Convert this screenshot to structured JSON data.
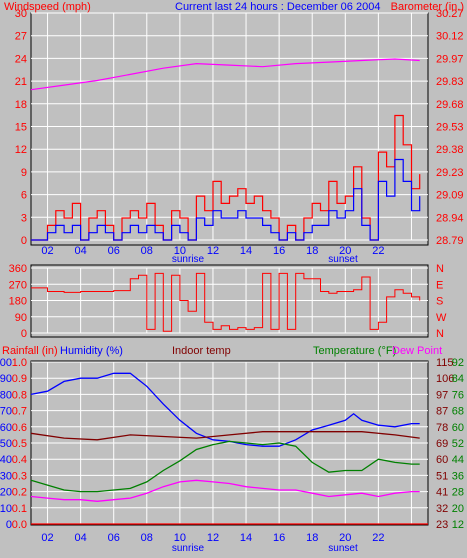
{
  "header": {
    "left_label": "Windspeed (mph)",
    "center_label": "Current last 24 hours : December 06 2004",
    "right_label": "Barometer (in.)"
  },
  "colors": {
    "background": "#c0c0c0",
    "plot_bg": "#c0c0c0",
    "wind": "#ff0000",
    "gust": "#0000ff",
    "barometer": "#ff00ff",
    "direction": "#ff0000",
    "humidity": "#0000ff",
    "indoor": "#800000",
    "temperature": "#008000",
    "dewpoint": "#ff00ff",
    "rain": "#ff0000",
    "grid": "#ffffff",
    "axis_left": "#ff0000",
    "axis_right": "#ff0000"
  },
  "x_ticks": [
    "02",
    "04",
    "06",
    "08",
    "10",
    "12",
    "14",
    "16",
    "18",
    "20",
    "22"
  ],
  "sun_labels": {
    "sunrise": "sunrise",
    "sunset": "sunset"
  },
  "chart_data": [
    {
      "type": "line",
      "title": "",
      "left_axis": {
        "label": "Windspeed (mph)",
        "ticks": [
          0,
          3,
          6,
          9,
          12,
          15,
          18,
          21,
          24,
          27,
          30
        ],
        "range": [
          0,
          31
        ]
      },
      "right_axis": {
        "label": "Barometer (in.)",
        "ticks": [
          "28.79",
          "28.94",
          "29.09",
          "29.23",
          "29.38",
          "29.53",
          "29.68",
          "29.83",
          "29.97",
          "30.12",
          "30.27"
        ],
        "range": [
          28.79,
          30.27
        ]
      },
      "x_range": [
        0,
        24
      ],
      "series": [
        {
          "key": "wind",
          "x": [
            0,
            1,
            1.5,
            2,
            2.5,
            3,
            3.5,
            4,
            4.5,
            5,
            5.5,
            6,
            6.5,
            7,
            7.5,
            8,
            8.5,
            9,
            9.5,
            10,
            10.5,
            11,
            11.5,
            12,
            12.5,
            13,
            13.5,
            14,
            14.5,
            15,
            15.5,
            16,
            16.5,
            17,
            17.5,
            18,
            18.5,
            19,
            19.5,
            20,
            20.5,
            21,
            21.5,
            22,
            22.5,
            23,
            23.5
          ],
          "y": [
            0,
            2,
            4,
            3,
            5,
            0,
            3,
            4,
            2,
            0,
            3,
            4,
            3,
            5,
            2,
            0,
            4,
            3,
            0,
            6,
            4,
            8,
            5,
            6,
            7,
            5,
            6,
            4,
            3,
            0,
            2,
            0,
            3,
            5,
            4,
            8,
            5,
            6,
            10,
            3,
            0,
            12,
            10,
            17,
            13,
            7,
            9
          ]
        },
        {
          "key": "gust",
          "x": [
            0,
            1,
            1.5,
            2,
            2.5,
            3,
            3.5,
            4,
            4.5,
            5,
            5.5,
            6,
            6.5,
            7,
            7.5,
            8,
            8.5,
            9,
            9.5,
            10,
            10.5,
            11,
            11.5,
            12,
            12.5,
            13,
            13.5,
            14,
            14.5,
            15,
            15.5,
            16,
            16.5,
            17,
            17.5,
            18,
            18.5,
            19,
            19.5,
            20,
            20.5,
            21,
            21.5,
            22,
            22.5,
            23,
            23.5
          ],
          "y": [
            0,
            1,
            2,
            1,
            2,
            0,
            1,
            2,
            1,
            0,
            1,
            2,
            1,
            2,
            1,
            0,
            2,
            1,
            0,
            3,
            2,
            4,
            3,
            3,
            4,
            3,
            3,
            2,
            1,
            0,
            1,
            0,
            1,
            2,
            2,
            4,
            3,
            4,
            7,
            2,
            0,
            8,
            6,
            11,
            8,
            4,
            6
          ]
        },
        {
          "key": "barometer",
          "x": [
            0,
            2,
            4,
            6,
            8,
            10,
            12,
            14,
            16,
            18,
            20,
            22,
            23.5
          ],
          "y": [
            29.77,
            29.8,
            29.83,
            29.87,
            29.91,
            29.94,
            29.93,
            29.92,
            29.94,
            29.95,
            29.96,
            29.97,
            29.96
          ]
        }
      ]
    },
    {
      "type": "line",
      "title": "",
      "left_axis": {
        "label": "",
        "ticks": [
          0,
          90,
          180,
          270,
          360
        ],
        "range": [
          0,
          360
        ]
      },
      "right_axis": {
        "label": "",
        "ticks": [
          "N",
          "W",
          "S",
          "E",
          "N"
        ]
      },
      "x_range": [
        0,
        24
      ],
      "series": [
        {
          "key": "direction",
          "x": [
            0,
            1,
            2,
            3,
            4,
            5,
            6,
            6.5,
            7,
            7.5,
            8,
            8.5,
            9,
            9.5,
            10,
            10.5,
            11,
            11.5,
            12,
            12.5,
            13,
            13.5,
            14,
            14.5,
            15,
            15.5,
            16,
            16.5,
            17,
            17.5,
            18,
            18.5,
            19,
            19.5,
            20,
            20.5,
            21,
            21.5,
            22,
            22.5,
            23,
            23.5
          ],
          "y": [
            250,
            230,
            225,
            230,
            230,
            235,
            300,
            320,
            20,
            330,
            10,
            320,
            180,
            120,
            330,
            60,
            20,
            40,
            20,
            30,
            20,
            30,
            330,
            20,
            330,
            20,
            330,
            300,
            300,
            230,
            220,
            230,
            230,
            240,
            310,
            20,
            60,
            200,
            240,
            220,
            200,
            180
          ]
        }
      ]
    },
    {
      "type": "line",
      "title": "",
      "left_axis": {
        "label": "Rainfall (in)",
        "ticks": [
          "0.0",
          "0.1",
          "0.2",
          "0.3",
          "0.4",
          "0.5",
          "0.6",
          "0.7",
          "0.8",
          "0.9",
          "1.0"
        ],
        "range": [
          0,
          1.0
        ]
      },
      "left_axis2": {
        "label": "Humidity (%)",
        "ticks": [
          0,
          10,
          20,
          30,
          40,
          50,
          60,
          70,
          80,
          90,
          100
        ],
        "range": [
          0,
          100
        ]
      },
      "center_label": "Indoor temp",
      "right_axis": {
        "label": "Temperature (°F)",
        "ticks": [
          12,
          20,
          28,
          36,
          44,
          52,
          60,
          68,
          76,
          84,
          92
        ]
      },
      "right_axis2": {
        "label": "Dew Point",
        "ticks": [
          23,
          32,
          41,
          51,
          60,
          69,
          78,
          87,
          97,
          106,
          115
        ]
      },
      "x_range": [
        0,
        24
      ],
      "series": [
        {
          "key": "humidity",
          "x": [
            0,
            1,
            2,
            3,
            4,
            5,
            6,
            7,
            8,
            9,
            10,
            11,
            12,
            13,
            14,
            15,
            16,
            17,
            18,
            19,
            19.5,
            20,
            21,
            22,
            23,
            23.5
          ],
          "y": [
            80,
            82,
            88,
            90,
            90,
            93,
            93,
            85,
            74,
            64,
            56,
            52,
            51,
            49,
            48,
            48,
            52,
            58,
            61,
            64,
            68,
            64,
            61,
            60,
            62,
            62
          ]
        },
        {
          "key": "indoor",
          "x": [
            0,
            2,
            4,
            6,
            8,
            10,
            12,
            14,
            16,
            18,
            20,
            22,
            23.5
          ],
          "y": [
            56,
            53,
            52,
            55,
            54,
            53,
            55,
            57,
            57,
            57,
            57,
            55,
            53
          ]
        },
        {
          "key": "temperature",
          "x": [
            0,
            1,
            2,
            3,
            4,
            5,
            6,
            7,
            8,
            9,
            10,
            11,
            12,
            13,
            14,
            15,
            16,
            17,
            18,
            19,
            20,
            21,
            22,
            23,
            23.5
          ],
          "y": [
            27,
            24,
            21,
            20,
            20,
            21,
            22,
            26,
            33,
            39,
            46,
            49,
            51,
            50,
            49,
            50,
            48,
            38,
            32,
            33,
            33,
            40,
            38,
            37,
            37
          ]
        },
        {
          "key": "dewpoint",
          "x": [
            0,
            1,
            2,
            3,
            4,
            5,
            6,
            7,
            8,
            9,
            10,
            11,
            12,
            13,
            14,
            15,
            16,
            17,
            18,
            19,
            20,
            21,
            22,
            23,
            23.5
          ],
          "y": [
            17,
            16,
            15,
            15,
            14,
            15,
            16,
            19,
            23,
            26,
            27,
            26,
            25,
            23,
            22,
            21,
            21,
            19,
            17,
            18,
            19,
            17,
            19,
            20,
            20
          ]
        },
        {
          "key": "rain",
          "x": [
            0,
            24
          ],
          "y": [
            0,
            0
          ]
        }
      ]
    }
  ]
}
